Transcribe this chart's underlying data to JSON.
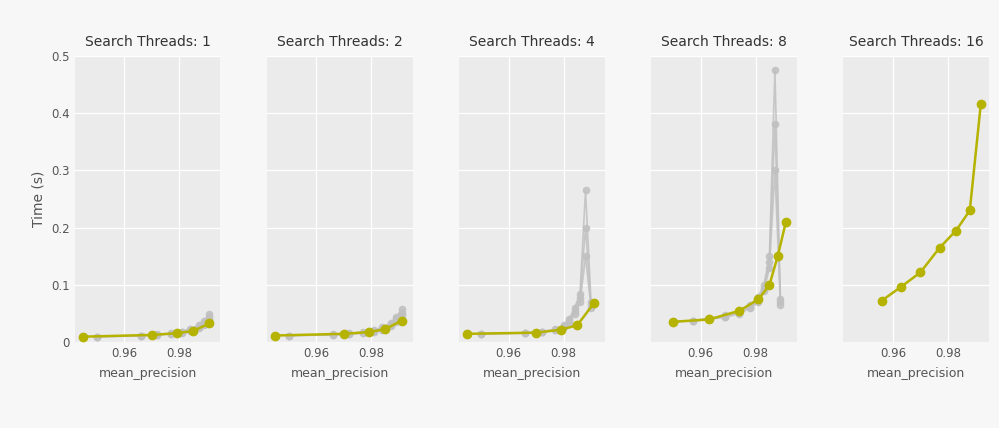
{
  "ylabel": "Time (s)",
  "xlabel": "mean_precision",
  "subplot_titles": [
    "Search Threads: 1",
    "Search Threads: 2",
    "Search Threads: 4",
    "Search Threads: 8",
    "Search Threads: 16"
  ],
  "ylim": [
    0,
    0.5
  ],
  "fig_facecolor": "#f7f7f7",
  "ax_facecolor": "#ebebeb",
  "color_gray": "#c0c0c0",
  "color_olive": "#b5b300",
  "series": [
    {
      "threads": 1,
      "gray_lines": [
        {
          "x": [
            0.95,
            0.966,
            0.972,
            0.977,
            0.981,
            0.984,
            0.987,
            0.989,
            0.991
          ],
          "y": [
            0.01,
            0.012,
            0.014,
            0.016,
            0.019,
            0.024,
            0.03,
            0.038,
            0.05
          ]
        },
        {
          "x": [
            0.95,
            0.966,
            0.972,
            0.977,
            0.981,
            0.984,
            0.987,
            0.989,
            0.991
          ],
          "y": [
            0.01,
            0.012,
            0.013,
            0.015,
            0.018,
            0.022,
            0.027,
            0.034,
            0.045
          ]
        },
        {
          "x": [
            0.95,
            0.966,
            0.972,
            0.977,
            0.981,
            0.984,
            0.987,
            0.989,
            0.991
          ],
          "y": [
            0.01,
            0.011,
            0.013,
            0.015,
            0.017,
            0.02,
            0.025,
            0.03,
            0.04
          ]
        }
      ],
      "olive": {
        "x": [
          0.945,
          0.97,
          0.979,
          0.985,
          0.991
        ],
        "y": [
          0.01,
          0.013,
          0.016,
          0.02,
          0.033
        ]
      }
    },
    {
      "threads": 2,
      "gray_lines": [
        {
          "x": [
            0.95,
            0.966,
            0.972,
            0.977,
            0.981,
            0.984,
            0.987,
            0.989,
            0.991
          ],
          "y": [
            0.012,
            0.014,
            0.016,
            0.018,
            0.021,
            0.026,
            0.034,
            0.044,
            0.058
          ]
        },
        {
          "x": [
            0.95,
            0.966,
            0.972,
            0.977,
            0.981,
            0.984,
            0.987,
            0.989,
            0.991
          ],
          "y": [
            0.012,
            0.013,
            0.015,
            0.017,
            0.02,
            0.024,
            0.03,
            0.04,
            0.052
          ]
        },
        {
          "x": [
            0.95,
            0.966,
            0.972,
            0.977,
            0.981,
            0.984,
            0.987,
            0.989,
            0.991
          ],
          "y": [
            0.012,
            0.013,
            0.014,
            0.016,
            0.019,
            0.022,
            0.028,
            0.036,
            0.047
          ]
        }
      ],
      "olive": {
        "x": [
          0.945,
          0.97,
          0.979,
          0.985,
          0.991
        ],
        "y": [
          0.012,
          0.015,
          0.018,
          0.023,
          0.038
        ]
      }
    },
    {
      "threads": 4,
      "gray_lines": [
        {
          "x": [
            0.95,
            0.966,
            0.972,
            0.977,
            0.98,
            0.982,
            0.984,
            0.986,
            0.988,
            0.99
          ],
          "y": [
            0.015,
            0.017,
            0.019,
            0.023,
            0.03,
            0.04,
            0.06,
            0.085,
            0.265,
            0.07
          ]
        },
        {
          "x": [
            0.95,
            0.966,
            0.972,
            0.977,
            0.98,
            0.982,
            0.984,
            0.986,
            0.988,
            0.99
          ],
          "y": [
            0.015,
            0.016,
            0.018,
            0.022,
            0.028,
            0.037,
            0.055,
            0.078,
            0.2,
            0.065
          ]
        },
        {
          "x": [
            0.95,
            0.966,
            0.972,
            0.977,
            0.98,
            0.982,
            0.984,
            0.986,
            0.988,
            0.99
          ],
          "y": [
            0.015,
            0.016,
            0.018,
            0.021,
            0.026,
            0.033,
            0.05,
            0.07,
            0.15,
            0.06
          ]
        }
      ],
      "olive": {
        "x": [
          0.945,
          0.97,
          0.979,
          0.985,
          0.991
        ],
        "y": [
          0.015,
          0.017,
          0.022,
          0.03,
          0.068
        ]
      }
    },
    {
      "threads": 8,
      "gray_lines": [
        {
          "x": [
            0.95,
            0.957,
            0.963,
            0.969,
            0.974,
            0.978,
            0.981,
            0.983,
            0.985,
            0.987,
            0.989
          ],
          "y": [
            0.036,
            0.038,
            0.042,
            0.047,
            0.055,
            0.065,
            0.08,
            0.1,
            0.15,
            0.475,
            0.075
          ]
        },
        {
          "x": [
            0.95,
            0.957,
            0.963,
            0.969,
            0.974,
            0.978,
            0.981,
            0.983,
            0.985,
            0.987,
            0.989
          ],
          "y": [
            0.036,
            0.038,
            0.041,
            0.045,
            0.052,
            0.062,
            0.075,
            0.095,
            0.14,
            0.38,
            0.07
          ]
        },
        {
          "x": [
            0.95,
            0.957,
            0.963,
            0.969,
            0.974,
            0.978,
            0.981,
            0.983,
            0.985,
            0.987,
            0.989
          ],
          "y": [
            0.036,
            0.037,
            0.04,
            0.044,
            0.05,
            0.06,
            0.07,
            0.09,
            0.13,
            0.3,
            0.065
          ]
        }
      ],
      "olive": {
        "x": [
          0.95,
          0.963,
          0.974,
          0.981,
          0.985,
          0.988,
          0.991
        ],
        "y": [
          0.036,
          0.04,
          0.055,
          0.075,
          0.1,
          0.15,
          0.21
        ]
      }
    },
    {
      "threads": 16,
      "gray_lines": [],
      "olive": {
        "x": [
          0.956,
          0.963,
          0.97,
          0.977,
          0.983,
          0.988,
          0.992
        ],
        "y": [
          0.073,
          0.097,
          0.122,
          0.165,
          0.195,
          0.23,
          0.415
        ]
      }
    }
  ]
}
